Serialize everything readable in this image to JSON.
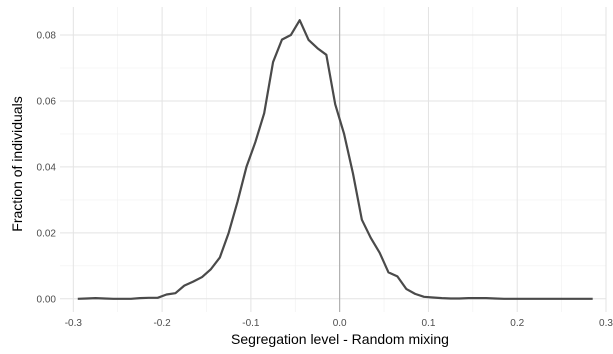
{
  "chart_data": {
    "type": "line",
    "title": "",
    "xlabel": "Segregation level - Random mixing",
    "ylabel": "Fraction of individuals",
    "xlim": [
      -0.315,
      0.3
    ],
    "ylim": [
      -0.004,
      0.0885
    ],
    "x_ticks": [
      -0.3,
      -0.2,
      -0.1,
      0.0,
      0.1,
      0.2,
      0.3
    ],
    "x_tick_labels": [
      "-0.3",
      "-0.2",
      "-0.1",
      "0.0",
      "0.1",
      "0.2",
      "0.3"
    ],
    "y_ticks": [
      0.0,
      0.02,
      0.04,
      0.06,
      0.08
    ],
    "y_tick_labels": [
      "0.00",
      "0.02",
      "0.04",
      "0.06",
      "0.08"
    ],
    "grid": true,
    "reference_line_x": 0.0,
    "series": [
      {
        "x": [
          -0.295,
          -0.285,
          -0.275,
          -0.265,
          -0.255,
          -0.245,
          -0.235,
          -0.225,
          -0.215,
          -0.205,
          -0.195,
          -0.185,
          -0.175,
          -0.165,
          -0.155,
          -0.145,
          -0.135,
          -0.125,
          -0.115,
          -0.105,
          -0.095,
          -0.085,
          -0.075,
          -0.065,
          -0.055,
          -0.045,
          -0.035,
          -0.025,
          -0.015,
          -0.005,
          0.005,
          0.015,
          0.025,
          0.035,
          0.045,
          0.055,
          0.065,
          0.075,
          0.085,
          0.095,
          0.105,
          0.115,
          0.125,
          0.135,
          0.145,
          0.155,
          0.165,
          0.175,
          0.185,
          0.195,
          0.205,
          0.215,
          0.225,
          0.235,
          0.245,
          0.255,
          0.265,
          0.275,
          0.285
        ],
        "values": [
          0.0,
          0.0001,
          0.0002,
          0.0001,
          0.0,
          0.0,
          0.0,
          0.0002,
          0.0003,
          0.0003,
          0.0013,
          0.0017,
          0.004,
          0.0052,
          0.0066,
          0.009,
          0.0125,
          0.02,
          0.0295,
          0.04,
          0.0475,
          0.0563,
          0.0718,
          0.0786,
          0.08,
          0.0845,
          0.0785,
          0.076,
          0.074,
          0.059,
          0.05,
          0.038,
          0.024,
          0.0185,
          0.014,
          0.008,
          0.0068,
          0.003,
          0.0015,
          0.0006,
          0.0004,
          0.0002,
          0.0001,
          0.0001,
          0.0002,
          0.0002,
          0.0002,
          0.0001,
          0.0,
          0.0,
          0.0,
          0.0,
          0.0,
          0.0,
          0.0,
          0.0,
          0.0,
          0.0,
          0.0
        ],
        "color": "#4a4a4a"
      }
    ]
  }
}
